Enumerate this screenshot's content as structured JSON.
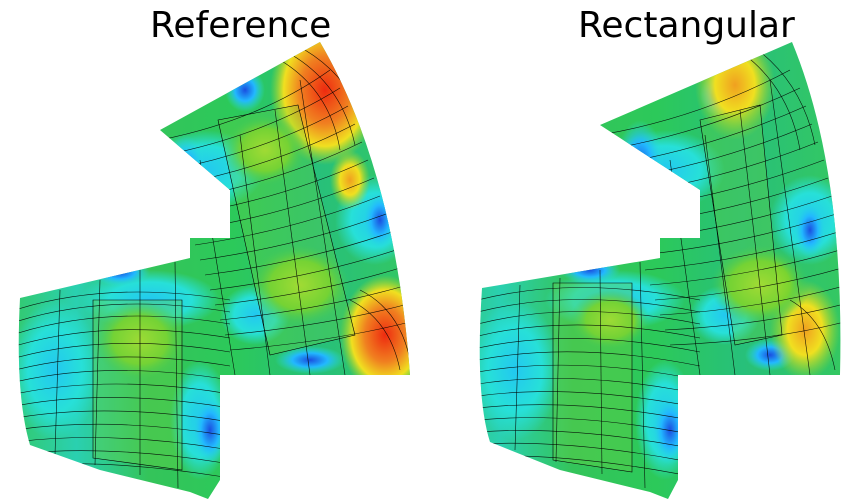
{
  "panels": [
    {
      "title": "Reference"
    },
    {
      "title": "Rectangular"
    }
  ],
  "colormap": [
    "#1a4fe0",
    "#22b8ff",
    "#27e0d8",
    "#35c860",
    "#25b020",
    "#a8d820",
    "#f0e020",
    "#f08020",
    "#ee2b10"
  ]
}
